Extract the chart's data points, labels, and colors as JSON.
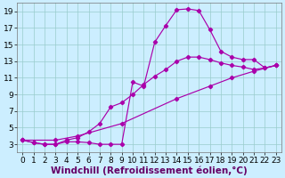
{
  "bg_color": "#cceeff",
  "grid_color": "#99cccc",
  "line_color": "#aa00aa",
  "xlabel": "Windchill (Refroidissement éolien,°C)",
  "xlabel_fontsize": 7.5,
  "xlim": [
    -0.5,
    23.5
  ],
  "ylim": [
    2,
    20
  ],
  "xticks": [
    0,
    1,
    2,
    3,
    4,
    5,
    6,
    7,
    8,
    9,
    10,
    11,
    12,
    13,
    14,
    15,
    16,
    17,
    18,
    19,
    20,
    21,
    22,
    23
  ],
  "yticks": [
    3,
    5,
    7,
    9,
    11,
    13,
    15,
    17,
    19
  ],
  "tick_fontsize": 6.5,
  "line1_x": [
    0,
    1,
    2,
    3,
    4,
    5,
    6,
    7,
    8,
    9,
    10,
    11,
    12,
    13,
    14,
    15,
    16,
    17,
    18,
    19,
    20,
    21,
    22,
    23
  ],
  "line1_y": [
    3.5,
    3.2,
    3.0,
    3.0,
    3.3,
    3.3,
    3.2,
    3.0,
    3.0,
    3.0,
    10.5,
    10.0,
    15.3,
    17.3,
    19.2,
    19.3,
    19.1,
    16.8,
    14.2,
    13.5,
    13.2,
    13.2,
    12.2,
    12.5
  ],
  "line2_x": [
    0,
    1,
    2,
    3,
    4,
    5,
    6,
    7,
    8,
    9,
    10,
    11,
    12,
    13,
    14,
    15,
    16,
    17,
    18,
    19,
    20,
    21,
    22,
    23
  ],
  "line2_y": [
    3.5,
    3.2,
    3.0,
    3.0,
    3.5,
    3.8,
    4.5,
    5.5,
    7.5,
    8.0,
    9.0,
    10.2,
    11.2,
    12.0,
    13.0,
    13.5,
    13.5,
    13.2,
    12.8,
    12.5,
    12.3,
    12.0,
    12.2,
    12.5
  ],
  "line3_x": [
    0,
    3,
    5,
    9,
    14,
    17,
    19,
    21,
    23
  ],
  "line3_y": [
    3.5,
    3.5,
    4.0,
    5.5,
    8.5,
    10.0,
    11.0,
    11.8,
    12.5
  ]
}
